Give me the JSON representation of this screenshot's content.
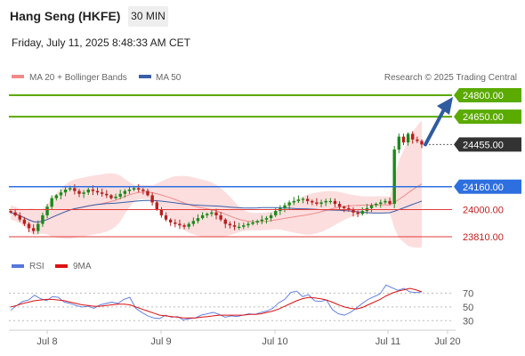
{
  "header": {
    "title": "Hang Seng (HKFE)",
    "interval": "30 MIN",
    "datetime": "Friday, July 11, 2025 8:48:33 AM CET"
  },
  "colors": {
    "resistance": "#5aaa00",
    "support_blue": "#2e6fe0",
    "red_level": "#e23b3b",
    "bollinger_fill": "#fbd3d3",
    "bollinger_line": "#f08a8a",
    "ma50": "#3a5fa8",
    "candle_up": "#1a8a1a",
    "candle_down": "#b81e1e",
    "rsi": "#5577dd",
    "rsi_ma": "#dd1111",
    "arrow": "#2f5b9f"
  },
  "chart_data": [
    {
      "type": "candlestick",
      "legend": [
        {
          "name": "MA 20 + Bollinger Bands",
          "color": "#f08a8a"
        },
        {
          "name": "MA 50",
          "color": "#3a5fa8"
        }
      ],
      "source": "Research © 2025 Trading Central",
      "x_ticks": [
        "Jul 8",
        "Jul 9",
        "Jul 10",
        "Jul 11",
        "Jul 20"
      ],
      "ylim": [
        23750,
        24900
      ],
      "last_price": 24455.0,
      "levels": [
        {
          "label": "24800.00",
          "value": 24800,
          "kind": "resistance"
        },
        {
          "label": "24650.00",
          "value": 24650,
          "kind": "resistance"
        },
        {
          "label": "24455.00",
          "value": 24455,
          "kind": "last"
        },
        {
          "label": "24160.00",
          "value": 24160,
          "kind": "pivot"
        },
        {
          "label": "24000.00",
          "value": 24000,
          "kind": "support"
        },
        {
          "label": "23810.00",
          "value": 23810,
          "kind": "support"
        }
      ],
      "arrow": {
        "from": 24455,
        "to": 24800
      },
      "closes": [
        23980,
        23960,
        23930,
        23900,
        23870,
        23850,
        23900,
        23960,
        24020,
        24080,
        24100,
        24120,
        24140,
        24150,
        24130,
        24110,
        24120,
        24140,
        24130,
        24120,
        24110,
        24100,
        24080,
        24090,
        24110,
        24130,
        24140,
        24150,
        24140,
        24130,
        24100,
        24050,
        24000,
        23960,
        23930,
        23910,
        23900,
        23890,
        23880,
        23900,
        23920,
        23940,
        23960,
        23970,
        23980,
        23960,
        23930,
        23900,
        23890,
        23880,
        23880,
        23890,
        23900,
        23910,
        23920,
        23930,
        23940,
        23960,
        23990,
        24010,
        24030,
        24050,
        24060,
        24070,
        24075,
        24060,
        24050,
        24040,
        24050,
        24060,
        24060,
        24040,
        24020,
        24010,
        24000,
        23980,
        23970,
        23990,
        24010,
        24030,
        24040,
        24050,
        24060,
        24040,
        24420,
        24510,
        24470,
        24530,
        24490,
        24480,
        24455
      ]
    },
    {
      "type": "line",
      "legend": [
        {
          "name": "RSI",
          "color": "#5577dd"
        },
        {
          "name": "9MA",
          "color": "#dd1111"
        }
      ],
      "ylim": [
        20,
        90
      ],
      "y_ticks": [
        70,
        50,
        30
      ],
      "rsi": [
        45,
        52,
        58,
        60,
        67,
        62,
        59,
        65,
        64,
        57,
        55,
        52,
        50,
        51,
        48,
        53,
        55,
        57,
        55,
        61,
        64,
        48,
        42,
        37,
        34,
        33,
        38,
        35,
        36,
        31,
        33,
        34,
        38,
        40,
        42,
        39,
        35,
        37,
        36,
        38,
        40,
        39,
        42,
        44,
        48,
        56,
        61,
        71,
        73,
        65,
        68,
        59,
        58,
        60,
        46,
        40,
        38,
        42,
        48,
        55,
        61,
        65,
        69,
        82,
        78,
        74,
        77,
        72,
        71,
        72
      ],
      "ma9": [
        50,
        52,
        55,
        57,
        59,
        60,
        61,
        61,
        60,
        59,
        57,
        55,
        53,
        52,
        51,
        51,
        52,
        53,
        54,
        54,
        53,
        50,
        47,
        44,
        41,
        38,
        37,
        36,
        35,
        34,
        34,
        34,
        35,
        36,
        37,
        38,
        38,
        38,
        38,
        38,
        39,
        39,
        40,
        42,
        44,
        47,
        51,
        55,
        59,
        62,
        64,
        63,
        62,
        60,
        57,
        53,
        50,
        48,
        47,
        49,
        53,
        57,
        61,
        66,
        70,
        73,
        75,
        77,
        75,
        72
      ]
    }
  ]
}
